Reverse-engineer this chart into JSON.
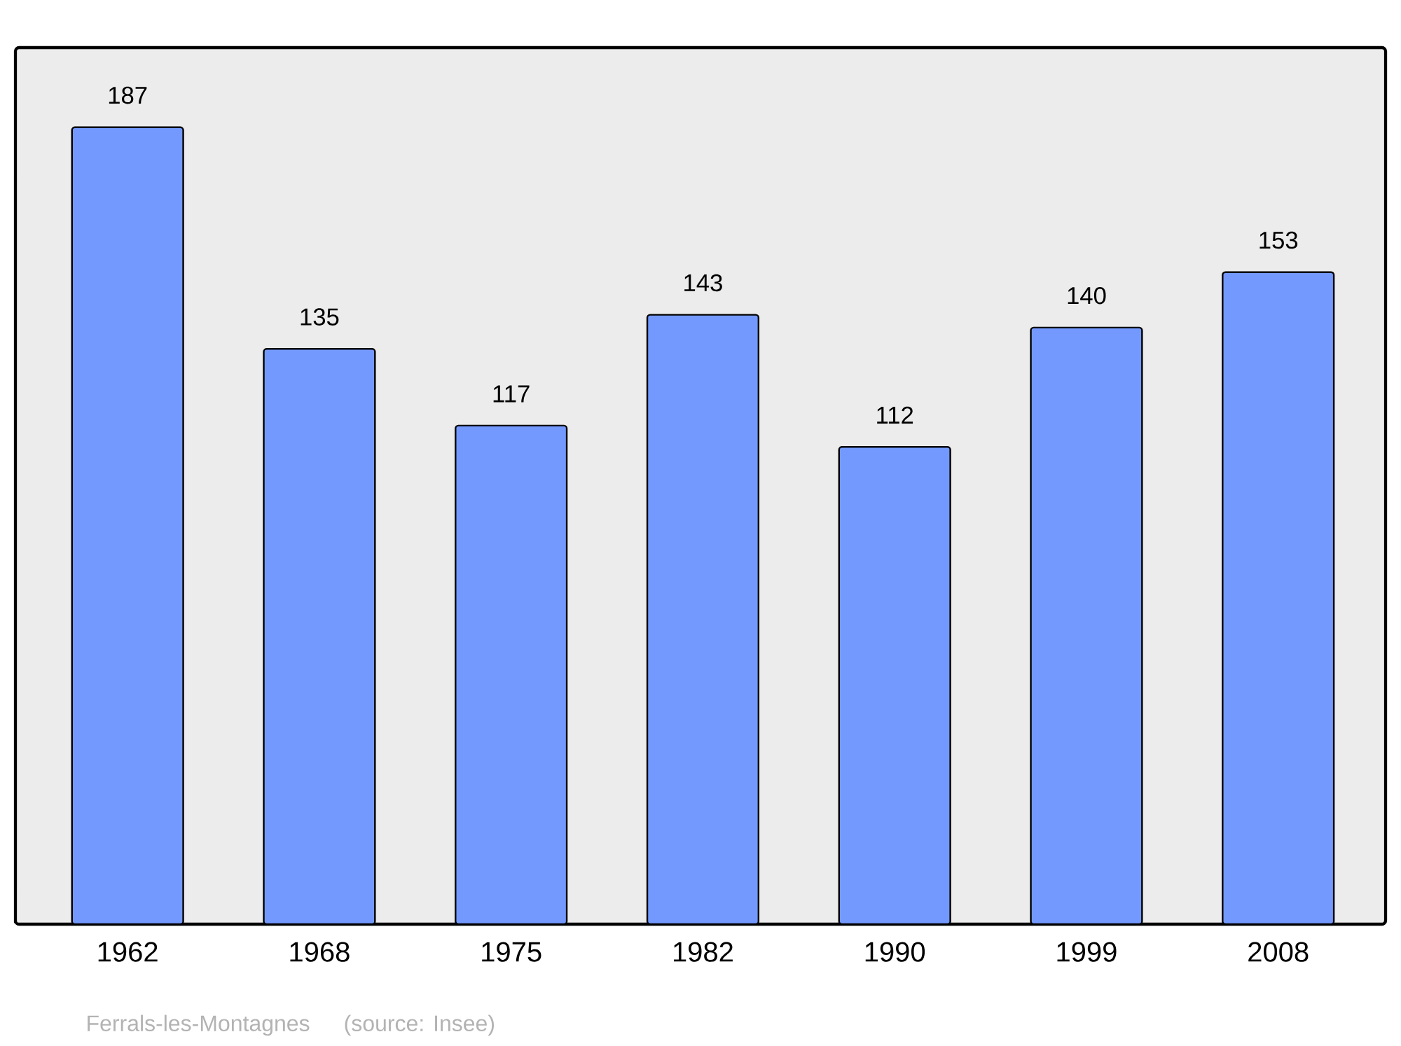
{
  "chart_data": {
    "type": "bar",
    "categories": [
      "1962",
      "1968",
      "1975",
      "1982",
      "1990",
      "1999",
      "2008"
    ],
    "values": [
      187,
      135,
      117,
      143,
      112,
      140,
      153
    ],
    "color": "#7399ff",
    "data_labels": true,
    "annotations": [
      "Ferrals-les-Montagnes",
      "(source: Insee)"
    ]
  }
}
